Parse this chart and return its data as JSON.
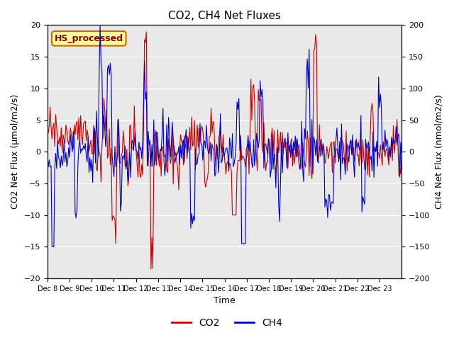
{
  "title": "CO2, CH4 Net Fluxes",
  "xlabel": "Time",
  "ylabel_left": "CO2 Net Flux (μmol/m2/s)",
  "ylabel_right": "CH4 Net Flux (nmol/m2/s)",
  "ylim_left": [
    -20,
    20
  ],
  "ylim_right": [
    -200,
    200
  ],
  "yticks_left": [
    -20,
    -15,
    -10,
    -5,
    0,
    5,
    10,
    15,
    20
  ],
  "yticks_right": [
    -200,
    -150,
    -100,
    -50,
    0,
    50,
    100,
    150,
    200
  ],
  "xtick_labels": [
    "Dec 8",
    "Dec 9",
    "Dec 10",
    "Dec 11",
    "Dec 12",
    "Dec 13",
    "Dec 14",
    "Dec 15",
    "Dec 16",
    "Dec 17",
    "Dec 18",
    "Dec 19",
    "Dec 20",
    "Dec 21",
    "Dec 22",
    "Dec 23"
  ],
  "co2_color": "#cc0000",
  "ch4_color": "#0000cc",
  "annotation_text": "HS_processed",
  "annotation_bg": "#ffff99",
  "annotation_border": "#cc6600",
  "annotation_text_color": "#880000",
  "background_color": "#e8e8e8",
  "legend_co2": "CO2",
  "legend_ch4": "CH4",
  "n_points": 384
}
